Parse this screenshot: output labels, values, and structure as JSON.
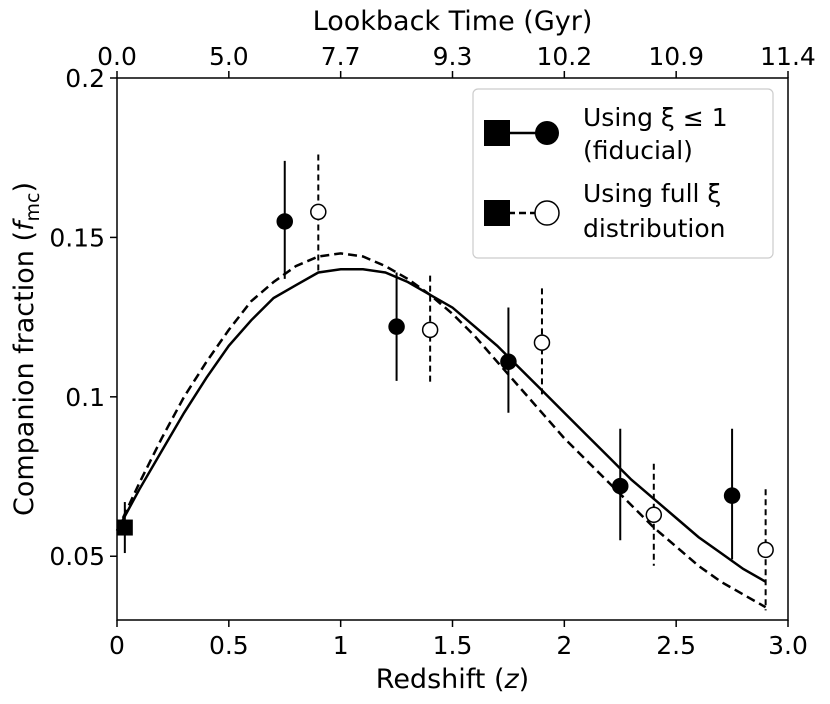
{
  "chart_data": {
    "type": "scatter",
    "xlabel_text": "Redshift (",
    "xlabel_var": "z",
    "xlabel_close": ")",
    "ylabel_text": "Companion fraction (",
    "ylabel_var": "f",
    "ylabel_sub": "mc",
    "ylabel_close": ")",
    "top_label": "Lookback Time (Gyr)",
    "xlim": [
      0,
      3.0
    ],
    "ylim": [
      0.03,
      0.2
    ],
    "x_ticks": [
      0,
      0.5,
      1.0,
      1.5,
      2.0,
      2.5,
      3.0
    ],
    "x_tick_labels": [
      "0",
      "0.5",
      "1",
      "1.5",
      "2",
      "2.5",
      "3.0"
    ],
    "y_ticks": [
      0.05,
      0.1,
      0.15,
      0.2
    ],
    "y_tick_labels": [
      "0.05",
      "0.1",
      "0.15",
      "0.2"
    ],
    "top_ticks": [
      0,
      0.5,
      1.0,
      1.5,
      2.0,
      2.5,
      3.0
    ],
    "top_tick_labels": [
      "0.0",
      "5.0",
      "7.7",
      "9.3",
      "10.2",
      "10.9",
      "11.4"
    ],
    "local_point": {
      "x": 0.035,
      "y": 0.059,
      "err_low": 0.008,
      "err_high": 0.008
    },
    "fiducial_points": [
      {
        "x": 0.75,
        "y": 0.155,
        "err_low": 0.018,
        "err_high": 0.019
      },
      {
        "x": 1.25,
        "y": 0.122,
        "err_low": 0.017,
        "err_high": 0.017
      },
      {
        "x": 1.75,
        "y": 0.111,
        "err_low": 0.016,
        "err_high": 0.017
      },
      {
        "x": 2.25,
        "y": 0.072,
        "err_low": 0.017,
        "err_high": 0.018
      },
      {
        "x": 2.75,
        "y": 0.069,
        "err_low": 0.02,
        "err_high": 0.021
      }
    ],
    "full_points": [
      {
        "x": 0.9,
        "y": 0.158,
        "err_low": 0.019,
        "err_high": 0.018
      },
      {
        "x": 1.4,
        "y": 0.121,
        "err_low": 0.017,
        "err_high": 0.017
      },
      {
        "x": 1.9,
        "y": 0.117,
        "err_low": 0.017,
        "err_high": 0.017
      },
      {
        "x": 2.4,
        "y": 0.063,
        "err_low": 0.016,
        "err_high": 0.016
      },
      {
        "x": 2.9,
        "y": 0.052,
        "err_low": 0.019,
        "err_high": 0.019
      }
    ],
    "fiducial_fit": {
      "x": [
        0,
        0.1,
        0.2,
        0.3,
        0.4,
        0.5,
        0.6,
        0.7,
        0.8,
        0.9,
        1.0,
        1.1,
        1.2,
        1.3,
        1.4,
        1.5,
        1.6,
        1.7,
        1.8,
        1.9,
        2.0,
        2.1,
        2.2,
        2.3,
        2.4,
        2.5,
        2.6,
        2.7,
        2.8,
        2.9
      ],
      "y": [
        0.058,
        0.071,
        0.083,
        0.095,
        0.106,
        0.116,
        0.124,
        0.131,
        0.135,
        0.139,
        0.14,
        0.14,
        0.139,
        0.136,
        0.132,
        0.128,
        0.122,
        0.116,
        0.109,
        0.102,
        0.095,
        0.088,
        0.081,
        0.074,
        0.068,
        0.062,
        0.056,
        0.051,
        0.046,
        0.042
      ]
    },
    "full_fit": {
      "x": [
        0,
        0.1,
        0.2,
        0.3,
        0.4,
        0.5,
        0.6,
        0.7,
        0.8,
        0.9,
        1.0,
        1.1,
        1.2,
        1.3,
        1.4,
        1.5,
        1.6,
        1.7,
        1.8,
        1.9,
        2.0,
        2.1,
        2.2,
        2.3,
        2.4,
        2.5,
        2.6,
        2.7,
        2.8,
        2.9
      ],
      "y": [
        0.058,
        0.073,
        0.087,
        0.1,
        0.111,
        0.121,
        0.13,
        0.136,
        0.141,
        0.144,
        0.145,
        0.144,
        0.141,
        0.137,
        0.132,
        0.126,
        0.119,
        0.111,
        0.103,
        0.095,
        0.087,
        0.08,
        0.073,
        0.066,
        0.059,
        0.053,
        0.047,
        0.042,
        0.038,
        0.034
      ]
    },
    "legend": {
      "placement": "top-right",
      "entries": [
        {
          "line1": "Using ξ ≤ 1",
          "line2": " (fiducial)"
        },
        {
          "line1": "Using full ξ",
          "line2": " distribution"
        }
      ]
    }
  }
}
